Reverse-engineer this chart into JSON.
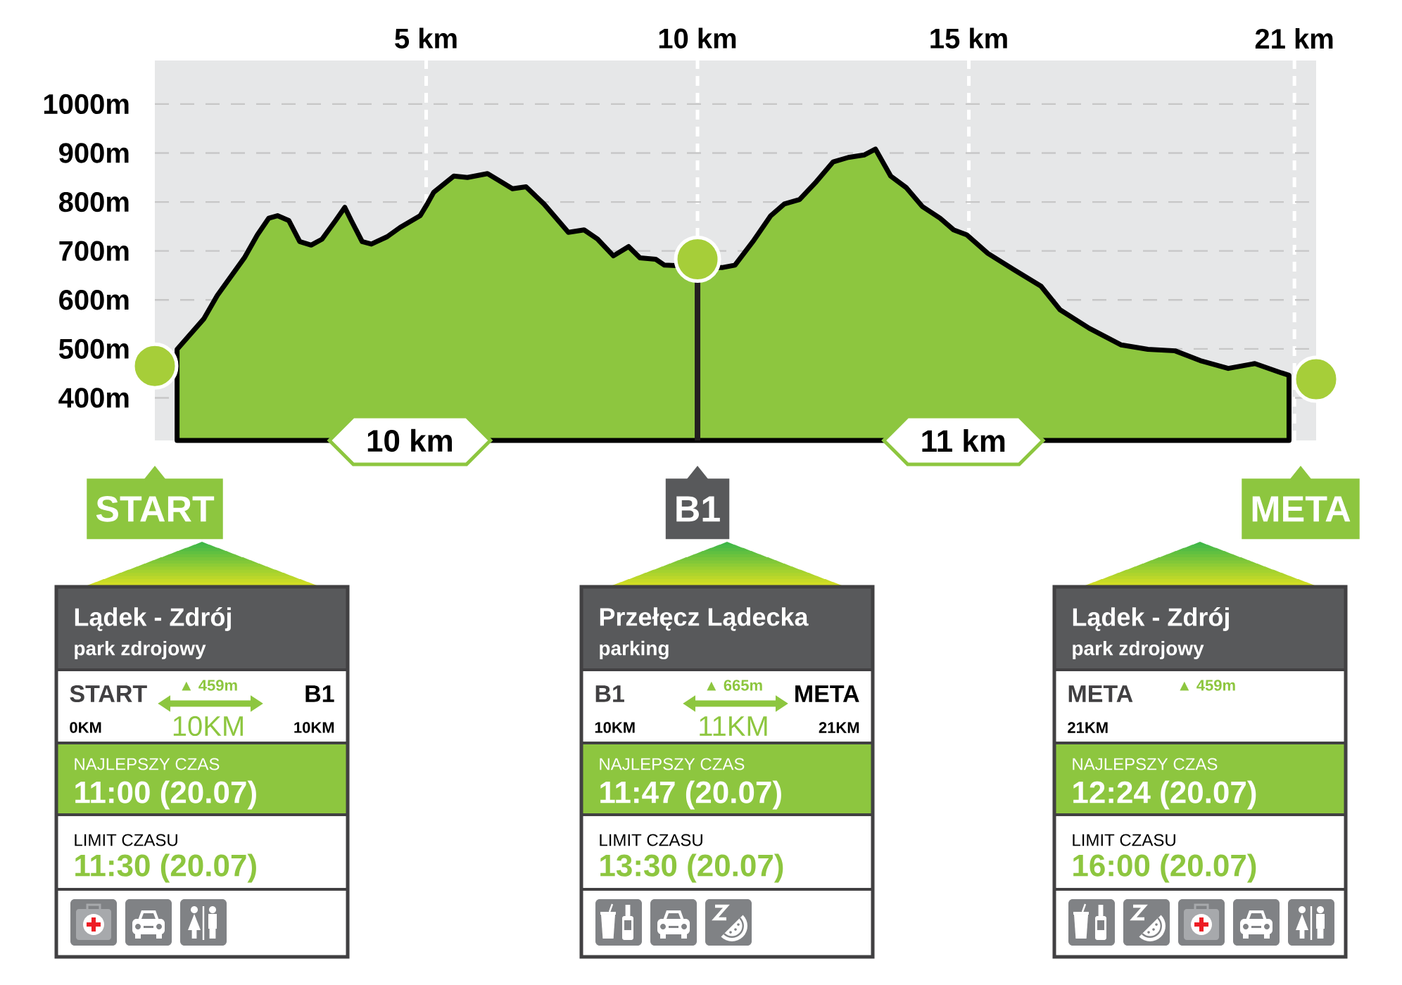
{
  "chart_data": [
    {
      "type": "area",
      "xlim": [
        0,
        21.4
      ],
      "ylim": [
        313,
        1089
      ],
      "xticks": [
        {
          "value": 5,
          "label": "5 km"
        },
        {
          "value": 10,
          "label": "10 km"
        },
        {
          "value": 15,
          "label": "15 km"
        },
        {
          "value": 21,
          "label": "21 km"
        }
      ],
      "yticks": [
        {
          "value": 400,
          "label": "400m"
        },
        {
          "value": 500,
          "label": "500m"
        },
        {
          "value": 600,
          "label": "600m"
        },
        {
          "value": 700,
          "label": "700m"
        },
        {
          "value": 800,
          "label": "800m"
        },
        {
          "value": 900,
          "label": "900m"
        },
        {
          "value": 1000,
          "label": "1000m"
        }
      ],
      "grid": true,
      "series": [
        {
          "type": "area",
          "color": "#8dc63f",
          "x": [
            0.41,
            0.9,
            1.15,
            1.65,
            1.89,
            2.1,
            2.26,
            2.47,
            2.67,
            2.88,
            3.08,
            3.33,
            3.5,
            3.62,
            3.82,
            3.99,
            4.28,
            4.52,
            4.89,
            5.02,
            5.14,
            5.51,
            5.76,
            6.13,
            6.34,
            6.59,
            6.84,
            7.17,
            7.62,
            7.91,
            8.16,
            8.45,
            8.73,
            8.94,
            9.23,
            9.39,
            10.45,
            10.69,
            11.02,
            11.35,
            11.6,
            11.88,
            12.17,
            12.5,
            12.78,
            13.07,
            13.28,
            13.56,
            13.85,
            14.14,
            14.47,
            14.72,
            14.96,
            15.35,
            15.84,
            16.33,
            16.68,
            17.22,
            17.81,
            18.3,
            18.8,
            19.29,
            19.78,
            20.27,
            20.76,
            20.9
          ],
          "values": [
            499,
            561,
            609,
            686,
            733,
            767,
            772,
            762,
            719,
            712,
            724,
            762,
            789,
            762,
            719,
            714,
            729,
            748,
            772,
            796,
            820,
            853,
            850,
            858,
            844,
            827,
            831,
            796,
            738,
            743,
            724,
            690,
            709,
            686,
            683,
            671,
            666,
            671,
            719,
            772,
            796,
            805,
            839,
            882,
            891,
            896,
            908,
            853,
            829,
            791,
            767,
            743,
            733,
            695,
            661,
            628,
            580,
            542,
            508,
            499,
            496,
            475,
            460,
            470,
            451,
            446
          ]
        },
        {
          "type": "scatter",
          "color": "#a6ce39",
          "marker": "circle",
          "x": [
            0,
            10,
            21.4
          ],
          "values": [
            465,
            683,
            438
          ]
        }
      ],
      "ref_lines": [
        {
          "axis": "x",
          "value": 10,
          "color": "#231f20"
        }
      ],
      "annotations": [
        {
          "text": "10 km",
          "x": 4.7,
          "y": 313
        },
        {
          "text": "11 km",
          "x": 14.9,
          "y": 313
        }
      ]
    },
    {
      "type": "other",
      "title": "START",
      "color": "#8dc63f",
      "annotations": [
        "Lądek - Zdrój",
        "park zdrojowy",
        "START",
        "0KM",
        "▲ 459m",
        "10KM",
        "B1",
        "10KM",
        "NAJLEPSZY CZAS",
        "11:00 (20.07)",
        "LIMIT CZASU",
        "11:30 (20.07)"
      ]
    },
    {
      "type": "other",
      "title": "B1",
      "color": "#58595b",
      "annotations": [
        "Przełęcz Lądecka",
        "parking",
        "B1",
        "10KM",
        "▲ 665m",
        "11KM",
        "META",
        "21KM",
        "NAJLEPSZY CZAS",
        "11:47 (20.07)",
        "LIMIT CZASU",
        "13:30 (20.07)"
      ]
    },
    {
      "type": "other",
      "title": "META",
      "color": "#8dc63f",
      "annotations": [
        "Lądek - Zdrój",
        "park zdrojowy",
        "META",
        "21KM",
        "▲ 459m",
        "NAJLEPSZY CZAS",
        "12:24 (20.07)",
        "LIMIT CZASU",
        "16:00 (20.07)"
      ]
    }
  ]
}
